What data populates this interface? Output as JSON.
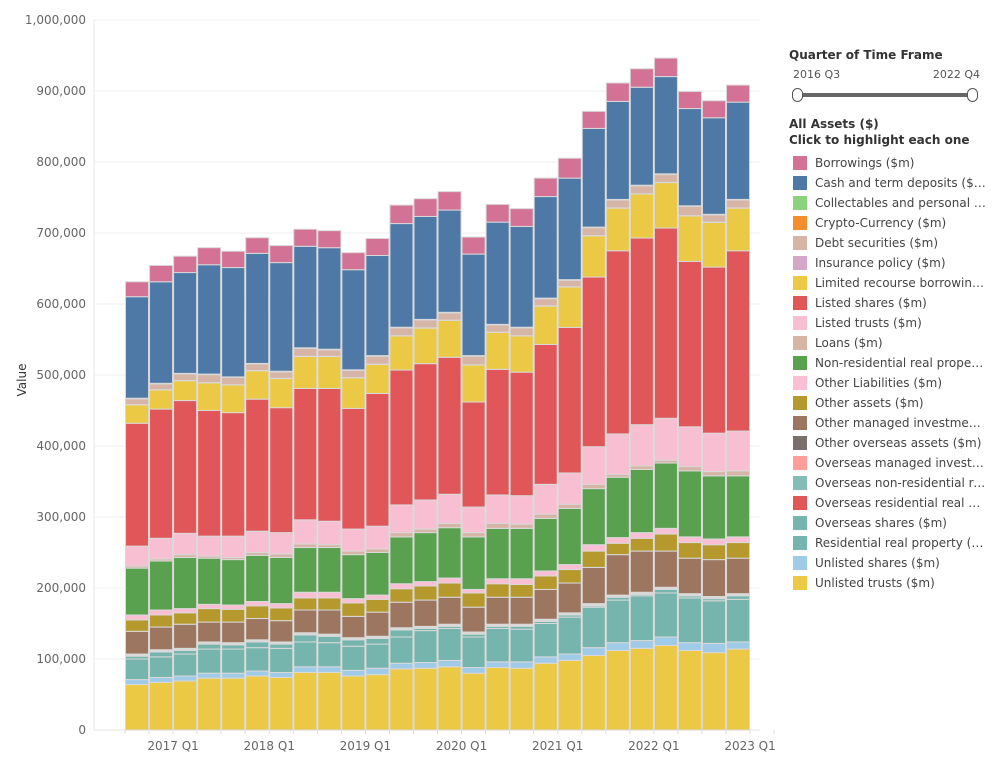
{
  "filter": {
    "title": "Quarter of Time Frame",
    "start": "2016 Q3",
    "end": "2022 Q4"
  },
  "legend": {
    "title": "All Assets ($)",
    "subtitle": "Click to highlight each one"
  },
  "chart_data": {
    "type": "bar",
    "stacked": true,
    "ylabel": "Value",
    "ylim": [
      0,
      1000000
    ],
    "yticks": [
      "0",
      "100,000",
      "200,000",
      "300,000",
      "400,000",
      "500,000",
      "600,000",
      "700,000",
      "800,000",
      "900,000",
      "1,000,000"
    ],
    "xtick_labels": [
      "2017 Q1",
      "2018 Q1",
      "2019 Q1",
      "2020 Q1",
      "2021 Q1",
      "2022 Q1",
      "2023 Q1"
    ],
    "grid": true,
    "legend_position": "right",
    "categories": [
      "2016 Q3",
      "2016 Q4",
      "2017 Q1",
      "2017 Q2",
      "2017 Q3",
      "2017 Q4",
      "2018 Q1",
      "2018 Q2",
      "2018 Q3",
      "2018 Q4",
      "2019 Q1",
      "2019 Q2",
      "2019 Q3",
      "2019 Q4",
      "2020 Q1",
      "2020 Q2",
      "2020 Q3",
      "2020 Q4",
      "2021 Q1",
      "2021 Q2",
      "2021 Q3",
      "2021 Q4",
      "2022 Q1",
      "2022 Q2",
      "2022 Q3",
      "2022 Q4"
    ],
    "series": [
      {
        "name": "Borrowings ($m)",
        "color": "#D37295",
        "values": [
          21000,
          23000,
          23000,
          24000,
          23000,
          22000,
          24000,
          24000,
          24000,
          24000,
          24000,
          26000,
          25000,
          26000,
          24000,
          25000,
          25000,
          26000,
          28000,
          24000,
          26000,
          26000,
          26000,
          24000,
          24000,
          24000
        ]
      },
      {
        "name": "Cash and term deposits ($m)",
        "color": "#4E79A7",
        "values": [
          143000,
          143000,
          142000,
          154000,
          154000,
          155000,
          153000,
          143000,
          143000,
          141000,
          141000,
          146000,
          145000,
          144000,
          143000,
          144000,
          142000,
          143000,
          143000,
          139000,
          138000,
          138000,
          137000,
          137000,
          136000,
          137000
        ]
      },
      {
        "name": "Collectables and personal us...",
        "color": "#8CD17D",
        "values": [
          500,
          500,
          500,
          500,
          500,
          500,
          500,
          500,
          500,
          500,
          500,
          500,
          500,
          500,
          500,
          500,
          500,
          500,
          500,
          500,
          500,
          500,
          500,
          500,
          500,
          500
        ]
      },
      {
        "name": "Crypto-Currency ($m)",
        "color": "#F28E2B",
        "values": [
          300,
          300,
          300,
          300,
          300,
          300,
          300,
          300,
          300,
          300,
          300,
          300,
          300,
          300,
          300,
          300,
          300,
          300,
          300,
          300,
          300,
          300,
          300,
          300,
          300,
          300
        ]
      },
      {
        "name": "Debt securities ($m)",
        "color": "#D7B5A6",
        "values": [
          8200,
          8200,
          9200,
          11200,
          10200,
          9200,
          9200,
          11200,
          9200,
          10200,
          11200,
          11200,
          11200,
          10200,
          12200,
          10200,
          11200,
          10200,
          9200,
          11200,
          11200,
          11200,
          11200,
          13200,
          10200,
          11200
        ]
      },
      {
        "name": "Insurance policy ($m)",
        "color": "#D4A6C8",
        "values": [
          300,
          300,
          300,
          300,
          300,
          300,
          300,
          300,
          300,
          300,
          300,
          300,
          300,
          300,
          300,
          300,
          300,
          300,
          300,
          300,
          300,
          300,
          300,
          300,
          300,
          300
        ]
      },
      {
        "name": "Limited recourse borrowing ...",
        "color": "#EBC944",
        "values": [
          26000,
          27000,
          28000,
          39000,
          39000,
          40000,
          41000,
          45000,
          45000,
          43000,
          41000,
          48000,
          50000,
          52000,
          52000,
          52000,
          51000,
          54000,
          57000,
          58000,
          60000,
          62000,
          64000,
          64000,
          63000,
          60000
        ]
      },
      {
        "name": "Listed shares ($m)",
        "color": "#E15759",
        "values": [
          173000,
          182000,
          187000,
          177000,
          174000,
          186000,
          176000,
          185000,
          187000,
          170000,
          187000,
          190000,
          192000,
          193000,
          148000,
          177000,
          174000,
          197000,
          205000,
          239000,
          258000,
          263000,
          268000,
          233000,
          234000,
          254000
        ]
      },
      {
        "name": "Listed trusts ($m)",
        "color": "#F8BED1",
        "values": [
          28000,
          29000,
          30000,
          28000,
          30000,
          30000,
          30000,
          34000,
          33000,
          31000,
          32000,
          39000,
          41000,
          41000,
          36000,
          40000,
          40000,
          42000,
          44000,
          53000,
          57000,
          58000,
          59000,
          56000,
          54000,
          56000
        ]
      },
      {
        "name": "Loans ($m)",
        "color": "#D7B5A6",
        "values": [
          3000,
          3000,
          4000,
          3000,
          3000,
          4000,
          5000,
          5000,
          4000,
          5000,
          5000,
          6000,
          5000,
          6000,
          6000,
          7000,
          6000,
          6000,
          6000,
          6000,
          4000,
          5000,
          4000,
          6000,
          6000,
          7000
        ]
      },
      {
        "name": "Non-residential real propert...",
        "color": "#59A14F",
        "values": [
          66000,
          69000,
          72000,
          65000,
          64000,
          65000,
          65000,
          63000,
          63000,
          62000,
          60000,
          66000,
          69000,
          71000,
          74000,
          71000,
          71000,
          74000,
          79000,
          79000,
          85000,
          89000,
          92000,
          93000,
          89000,
          86000
        ]
      },
      {
        "name": "Other Liabilities ($m)",
        "color": "#FABFD2",
        "values": [
          7000,
          7000,
          6000,
          6000,
          6000,
          6000,
          6000,
          8000,
          8000,
          6000,
          6000,
          7000,
          6000,
          7000,
          5000,
          7000,
          8000,
          7000,
          7000,
          9000,
          8000,
          8000,
          8000,
          8000,
          8000,
          8000
        ]
      },
      {
        "name": "Other assets ($m)",
        "color": "#B6992D",
        "values": [
          16000,
          17000,
          16000,
          19000,
          18000,
          18000,
          18000,
          17000,
          17000,
          19000,
          18000,
          19000,
          20000,
          20000,
          20000,
          19000,
          18000,
          19000,
          19000,
          23000,
          16000,
          18000,
          24000,
          22000,
          21000,
          22000
        ]
      },
      {
        "name": "Other managed investments...",
        "color": "#9D7660",
        "values": [
          32000,
          32000,
          34000,
          28000,
          29000,
          30000,
          30000,
          32000,
          34000,
          30000,
          34000,
          36000,
          37000,
          38000,
          35000,
          38000,
          38000,
          42000,
          42000,
          51000,
          57000,
          58000,
          51000,
          50000,
          52000,
          50000
        ]
      },
      {
        "name": "Other overseas assets ($m)",
        "color": "#79706E",
        "values": [
          1000,
          1000,
          1000,
          1000,
          1000,
          1000,
          1000,
          1000,
          1000,
          1000,
          1000,
          1000,
          1000,
          1000,
          1000,
          1000,
          1000,
          1000,
          1000,
          1000,
          1000,
          1000,
          1000,
          1000,
          1000,
          1000
        ]
      },
      {
        "name": "Overseas managed investm...",
        "color": "#FF9D9A",
        "values": [
          1000,
          1000,
          1000,
          1000,
          1000,
          1000,
          1000,
          1000,
          1000,
          1000,
          1000,
          1000,
          1000,
          1000,
          1000,
          1000,
          1000,
          1000,
          1000,
          1000,
          1000,
          1000,
          1000,
          1000,
          1000,
          1000
        ]
      },
      {
        "name": "Overseas non-residential re...",
        "color": "#86BCB6",
        "values": [
          500,
          500,
          500,
          500,
          500,
          500,
          500,
          500,
          500,
          500,
          500,
          500,
          500,
          500,
          500,
          500,
          500,
          500,
          500,
          500,
          500,
          500,
          500,
          500,
          500,
          500
        ]
      },
      {
        "name": "Overseas residential real pr...",
        "color": "#E15759",
        "values": [
          500,
          500,
          500,
          500,
          500,
          500,
          500,
          500,
          500,
          500,
          500,
          500,
          500,
          500,
          500,
          500,
          500,
          500,
          500,
          500,
          500,
          500,
          500,
          500,
          500,
          500
        ]
      },
      {
        "name": "Overseas shares ($m)",
        "color": "#76B5AE",
        "values": [
          4000,
          7000,
          5000,
          7000,
          6000,
          8000,
          6000,
          10000,
          9000,
          9000,
          8000,
          10000,
          3000,
          3000,
          4000,
          3000,
          4000,
          3000,
          3000,
          2000,
          4000,
          2000,
          5000,
          3000,
          3000,
          5000
        ]
      },
      {
        "name": "Residential real property ($m)",
        "color": "#76B5AE",
        "values": [
          29000,
          29000,
          31000,
          34000,
          34000,
          33000,
          34000,
          35000,
          34000,
          34000,
          34000,
          37000,
          45000,
          45000,
          43000,
          47000,
          46000,
          47000,
          52000,
          57000,
          60000,
          63000,
          62000,
          63000,
          60000,
          60000
        ]
      },
      {
        "name": "Unlisted shares ($m)",
        "color": "#A0CBE8",
        "values": [
          7000,
          7000,
          7000,
          7000,
          7000,
          7000,
          7000,
          8000,
          8000,
          8000,
          9000,
          8000,
          8000,
          9000,
          8000,
          8000,
          9000,
          9000,
          9000,
          11000,
          11000,
          11000,
          12000,
          11000,
          13000,
          10000
        ]
      },
      {
        "name": "Unlisted trusts ($m)",
        "color": "#EBC944",
        "values": [
          64000,
          67000,
          69000,
          73000,
          73000,
          76000,
          74000,
          81000,
          81000,
          76000,
          78000,
          86000,
          87000,
          89000,
          80000,
          88000,
          87000,
          94000,
          98000,
          105000,
          112000,
          115000,
          119000,
          112000,
          109000,
          114000
        ]
      }
    ]
  }
}
